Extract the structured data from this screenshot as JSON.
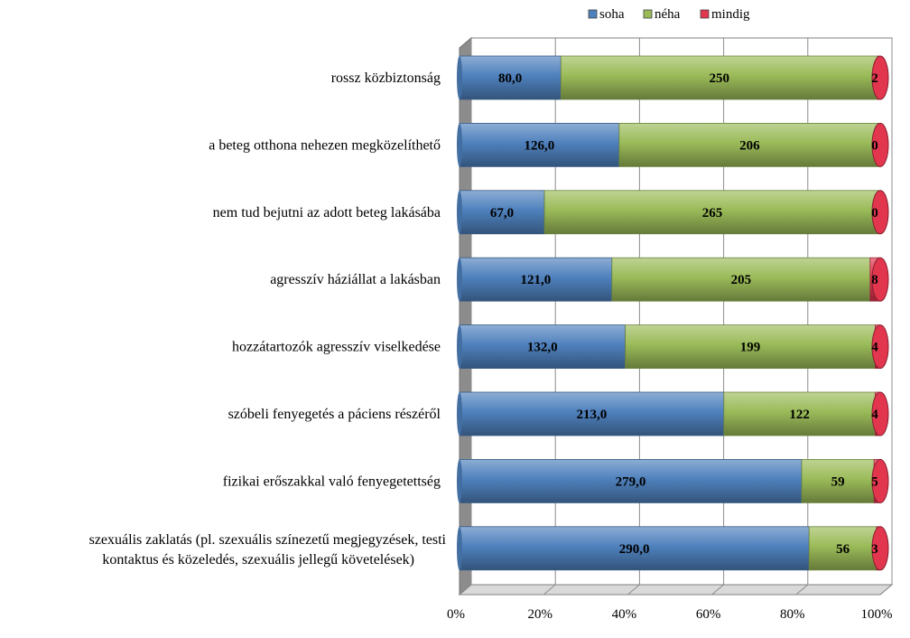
{
  "chart_data": {
    "type": "bar",
    "orientation": "horizontal",
    "stacked": "percent",
    "categories": [
      "rossz közbiztonság",
      "a beteg otthona nehezen megközelíthető",
      "nem tud bejutni az adott beteg lakásába",
      "agresszív háziállat a lakásban",
      "hozzátartozók agresszív viselkedése",
      "szóbeli fenyegetés a páciens részéről",
      "fizikai erőszakkal való fenyegetettség",
      "szexuális zaklatás (pl. szexuális színezetű megjegyzések, testi kontaktus és közeledés, szexuális jellegű követelések)"
    ],
    "category_lines": [
      [
        "rossz közbiztonság"
      ],
      [
        "a beteg otthona nehezen megközelíthető"
      ],
      [
        "nem tud bejutni az adott beteg lakásába"
      ],
      [
        "agresszív háziállat a lakásban"
      ],
      [
        "hozzátartozók agresszív viselkedése"
      ],
      [
        "szóbeli fenyegetés a páciens részéről"
      ],
      [
        "fizikai erőszakkal való fenyegetettség"
      ],
      [
        "szexuális zaklatás (pl. szexuális színezetű megjegyzések, testi",
        "kontaktus és közeledés, szexuális jellegű követelések)"
      ]
    ],
    "series": [
      {
        "name": "soha",
        "color": "#4f81bd",
        "values": [
          80,
          126,
          67,
          121,
          132,
          213,
          279,
          290
        ],
        "labels": [
          "80,0",
          "126,0",
          "67,0",
          "121,0",
          "132,0",
          "213,0",
          "279,0",
          "290,0"
        ]
      },
      {
        "name": "néha",
        "color": "#9bbb59",
        "values": [
          250,
          206,
          265,
          205,
          199,
          122,
          59,
          56
        ],
        "labels": [
          "250",
          "206",
          "265",
          "205",
          "199",
          "122",
          "59",
          "56"
        ]
      },
      {
        "name": "mindig",
        "color": "#e2364f",
        "values": [
          2,
          0,
          0,
          8,
          4,
          4,
          5,
          3
        ],
        "labels": [
          "2",
          "0",
          "0",
          "8",
          "4",
          "4",
          "5",
          "3"
        ]
      }
    ],
    "x_ticks": [
      "0%",
      "20%",
      "40%",
      "60%",
      "80%",
      "100%"
    ],
    "xlim": [
      0,
      100
    ],
    "grid": true,
    "legend_position": "top"
  }
}
